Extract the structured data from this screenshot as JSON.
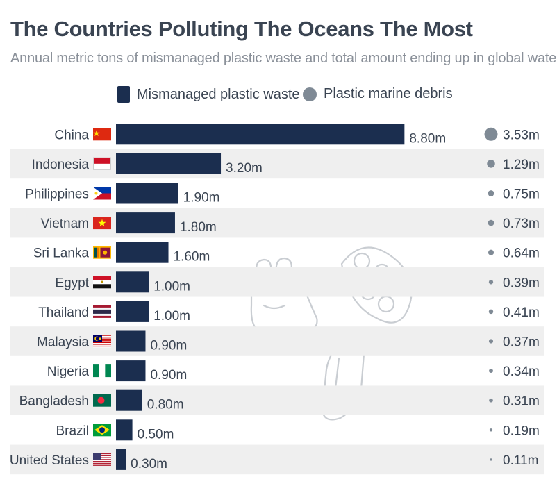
{
  "title": "The Countries Polluting The Oceans The Most",
  "subtitle": "Annual metric tons of mismanaged plastic waste and total amount ending up in global waters*",
  "colors": {
    "bar": "#1b2e4f",
    "dot": "#7f8a95",
    "row_stripe": "#efefef",
    "text": "#3a4452"
  },
  "legend": [
    {
      "label": "Mismanaged plastic waste",
      "shape": "bar"
    },
    {
      "label": "Plastic marine debris",
      "shape": "dot"
    }
  ],
  "chart_data": {
    "type": "bar",
    "orientation": "horizontal",
    "categories": [
      "China",
      "Indonesia",
      "Philippines",
      "Vietnam",
      "Sri Lanka",
      "Egypt",
      "Thailand",
      "Malaysia",
      "Nigeria",
      "Bangladesh",
      "Brazil",
      "United States"
    ],
    "flags": [
      "flag-china-icon",
      "flag-indonesia-icon",
      "flag-philippines-icon",
      "flag-vietnam-icon",
      "flag-sri-lanka-icon",
      "flag-egypt-icon",
      "flag-thailand-icon",
      "flag-malaysia-icon",
      "flag-nigeria-icon",
      "flag-bangladesh-icon",
      "flag-brazil-icon",
      "flag-united-states-icon"
    ],
    "series": [
      {
        "name": "Mismanaged plastic waste",
        "mark": "bar",
        "values": [
          8.8,
          3.2,
          1.9,
          1.8,
          1.6,
          1.0,
          1.0,
          0.9,
          0.9,
          0.8,
          0.5,
          0.3
        ],
        "labels": [
          "8.80m",
          "3.20m",
          "1.90m",
          "1.80m",
          "1.60m",
          "1.00m",
          "1.00m",
          "0.90m",
          "0.90m",
          "0.80m",
          "0.50m",
          "0.30m"
        ]
      },
      {
        "name": "Plastic marine debris",
        "mark": "dot",
        "values": [
          3.53,
          1.29,
          0.75,
          0.73,
          0.64,
          0.39,
          0.41,
          0.37,
          0.34,
          0.31,
          0.19,
          0.11
        ],
        "labels": [
          "3.53m",
          "1.29m",
          "0.75m",
          "0.73m",
          "0.64m",
          "0.39m",
          "0.41m",
          "0.37m",
          "0.34m",
          "0.31m",
          "0.19m",
          "0.11m"
        ]
      }
    ],
    "unit": "million metric tons",
    "grid": false,
    "legend_position": "top"
  }
}
